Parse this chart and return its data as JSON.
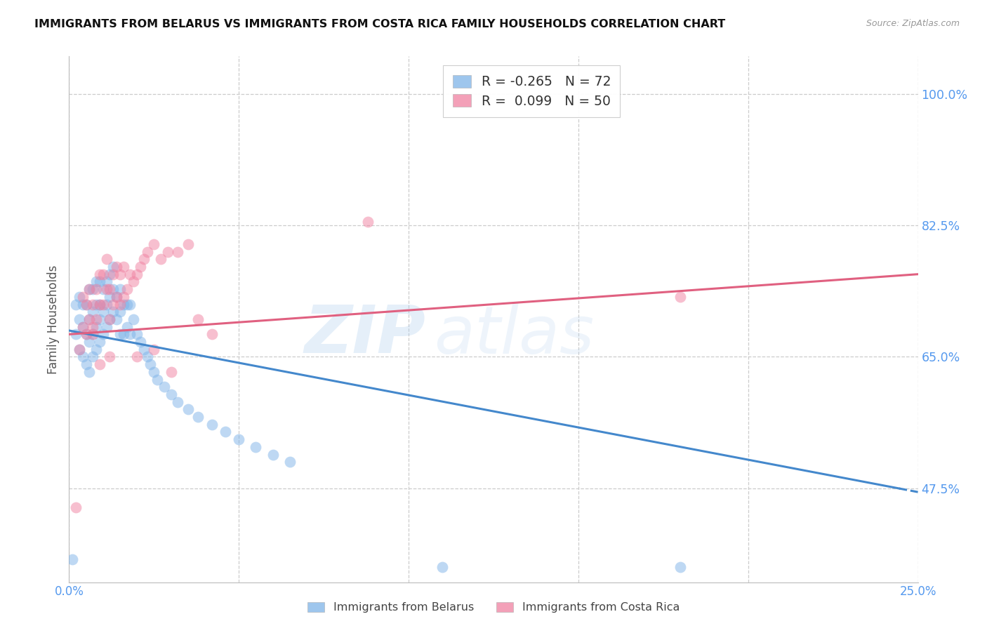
{
  "title": "IMMIGRANTS FROM BELARUS VS IMMIGRANTS FROM COSTA RICA FAMILY HOUSEHOLDS CORRELATION CHART",
  "source": "Source: ZipAtlas.com",
  "ylabel": "Family Households",
  "ytick_labels": [
    "100.0%",
    "82.5%",
    "65.0%",
    "47.5%"
  ],
  "ytick_values": [
    1.0,
    0.825,
    0.65,
    0.475
  ],
  "xmin": 0.0,
  "xmax": 0.25,
  "ymin": 0.35,
  "ymax": 1.05,
  "legend_r_belarus": "-0.265",
  "legend_n_belarus": "72",
  "legend_r_costarica": "0.099",
  "legend_n_costarica": "50",
  "color_belarus": "#7EB3E8",
  "color_costarica": "#F080A0",
  "color_belarus_line": "#4488CC",
  "color_costarica_line": "#E06080",
  "color_axis_labels": "#5599EE",
  "watermark_line1": "ZIP",
  "watermark_line2": "atlas",
  "belarus_x": [
    0.001,
    0.002,
    0.002,
    0.003,
    0.003,
    0.003,
    0.004,
    0.004,
    0.004,
    0.005,
    0.005,
    0.005,
    0.006,
    0.006,
    0.006,
    0.006,
    0.007,
    0.007,
    0.007,
    0.007,
    0.008,
    0.008,
    0.008,
    0.008,
    0.009,
    0.009,
    0.009,
    0.009,
    0.01,
    0.01,
    0.01,
    0.011,
    0.011,
    0.011,
    0.012,
    0.012,
    0.012,
    0.013,
    0.013,
    0.013,
    0.014,
    0.014,
    0.015,
    0.015,
    0.015,
    0.016,
    0.016,
    0.017,
    0.017,
    0.018,
    0.018,
    0.019,
    0.02,
    0.021,
    0.022,
    0.023,
    0.024,
    0.025,
    0.026,
    0.028,
    0.03,
    0.032,
    0.035,
    0.038,
    0.042,
    0.046,
    0.05,
    0.055,
    0.06,
    0.065,
    0.11,
    0.18
  ],
  "belarus_y": [
    0.38,
    0.68,
    0.72,
    0.66,
    0.7,
    0.73,
    0.65,
    0.69,
    0.72,
    0.64,
    0.68,
    0.72,
    0.63,
    0.67,
    0.7,
    0.74,
    0.65,
    0.68,
    0.71,
    0.74,
    0.66,
    0.69,
    0.72,
    0.75,
    0.67,
    0.7,
    0.72,
    0.75,
    0.68,
    0.71,
    0.74,
    0.69,
    0.72,
    0.75,
    0.7,
    0.73,
    0.76,
    0.71,
    0.74,
    0.77,
    0.7,
    0.73,
    0.68,
    0.71,
    0.74,
    0.68,
    0.72,
    0.69,
    0.72,
    0.68,
    0.72,
    0.7,
    0.68,
    0.67,
    0.66,
    0.65,
    0.64,
    0.63,
    0.62,
    0.61,
    0.6,
    0.59,
    0.58,
    0.57,
    0.56,
    0.55,
    0.54,
    0.53,
    0.52,
    0.51,
    0.37,
    0.37
  ],
  "costarica_x": [
    0.002,
    0.003,
    0.004,
    0.004,
    0.005,
    0.005,
    0.006,
    0.006,
    0.007,
    0.007,
    0.008,
    0.008,
    0.009,
    0.009,
    0.01,
    0.01,
    0.011,
    0.011,
    0.012,
    0.012,
    0.013,
    0.013,
    0.014,
    0.014,
    0.015,
    0.015,
    0.016,
    0.016,
    0.017,
    0.018,
    0.019,
    0.02,
    0.021,
    0.022,
    0.023,
    0.025,
    0.027,
    0.029,
    0.032,
    0.035,
    0.038,
    0.042,
    0.02,
    0.025,
    0.03,
    0.007,
    0.009,
    0.012,
    0.088,
    0.18
  ],
  "costarica_y": [
    0.45,
    0.66,
    0.69,
    0.73,
    0.68,
    0.72,
    0.7,
    0.74,
    0.68,
    0.72,
    0.7,
    0.74,
    0.72,
    0.76,
    0.72,
    0.76,
    0.74,
    0.78,
    0.7,
    0.74,
    0.72,
    0.76,
    0.73,
    0.77,
    0.72,
    0.76,
    0.73,
    0.77,
    0.74,
    0.76,
    0.75,
    0.76,
    0.77,
    0.78,
    0.79,
    0.8,
    0.78,
    0.79,
    0.79,
    0.8,
    0.7,
    0.68,
    0.65,
    0.66,
    0.63,
    0.69,
    0.64,
    0.65,
    0.83,
    0.73
  ],
  "line_belarus_x0": 0.0,
  "line_belarus_y0": 0.685,
  "line_belarus_x1": 0.25,
  "line_belarus_y1": 0.47,
  "line_costarica_x0": 0.0,
  "line_costarica_y0": 0.68,
  "line_costarica_x1": 0.25,
  "line_costarica_y1": 0.76,
  "line_solid_end_belarus": 0.195
}
